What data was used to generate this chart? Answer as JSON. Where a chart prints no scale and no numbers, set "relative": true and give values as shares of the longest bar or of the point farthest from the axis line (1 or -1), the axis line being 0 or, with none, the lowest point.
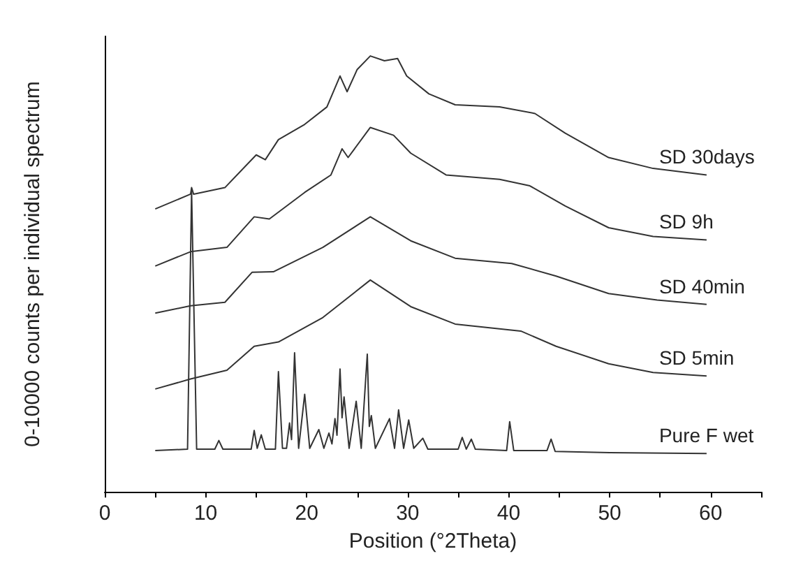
{
  "chart_data": {
    "type": "line",
    "relative": true,
    "xlabel": "Position (°2Theta)",
    "ylabel": "0-10000 counts per individual spectrum",
    "xlim": [
      0,
      65
    ],
    "xticks": [
      0,
      {
        "value": 5,
        "label": null
      },
      10,
      {
        "value": 15,
        "label": null
      },
      20,
      {
        "value": 25,
        "label": null
      },
      30,
      {
        "value": 35,
        "label": null
      },
      40,
      {
        "value": 45,
        "label": null
      },
      50,
      {
        "value": 55,
        "label": null
      },
      60,
      {
        "value": 65,
        "label": null
      }
    ],
    "legend": false,
    "grid": false,
    "marker": "none",
    "line_style": "solid",
    "series": [
      {
        "name": "SD 30days",
        "color": "#333333",
        "x": [
          5.0,
          8.5,
          8.6,
          8.8,
          11.9,
          15.0,
          15.9,
          17.2,
          19.8,
          22.0,
          23.3,
          24.0,
          25.0,
          26.3,
          27.7,
          29.0,
          29.9,
          32.1,
          34.7,
          39.1,
          42.6,
          45.6,
          49.9,
          54.3,
          59.6
        ],
        "values": [
          0.649,
          0.683,
          0.698,
          0.683,
          0.698,
          0.773,
          0.762,
          0.808,
          0.843,
          0.883,
          0.954,
          0.918,
          0.969,
          1.0,
          0.989,
          0.994,
          0.954,
          0.913,
          0.888,
          0.883,
          0.868,
          0.823,
          0.767,
          0.742,
          0.727
        ]
      },
      {
        "name": "SD 9h",
        "color": "#333333",
        "x": [
          5.0,
          8.5,
          12.1,
          14.8,
          16.3,
          19.8,
          22.4,
          23.5,
          24.1,
          26.3,
          28.6,
          30.3,
          33.8,
          39.1,
          42.1,
          45.6,
          49.9,
          54.3,
          59.6
        ],
        "values": [
          0.518,
          0.551,
          0.561,
          0.631,
          0.626,
          0.687,
          0.727,
          0.787,
          0.767,
          0.836,
          0.818,
          0.777,
          0.727,
          0.717,
          0.702,
          0.656,
          0.606,
          0.586,
          0.578
        ]
      },
      {
        "name": "SD 40min",
        "color": "#333333",
        "x": [
          5.0,
          8.5,
          11.9,
          14.6,
          16.7,
          21.6,
          26.3,
          30.3,
          34.7,
          40.3,
          44.7,
          49.9,
          54.7,
          59.6
        ],
        "values": [
          0.41,
          0.427,
          0.435,
          0.504,
          0.505,
          0.561,
          0.631,
          0.576,
          0.536,
          0.524,
          0.495,
          0.455,
          0.44,
          0.43
        ]
      },
      {
        "name": "SD 5min",
        "color": "#333333",
        "x": [
          5.0,
          8.5,
          12.1,
          14.8,
          17.2,
          21.6,
          26.3,
          30.3,
          34.7,
          41.2,
          44.7,
          49.9,
          54.3,
          59.6
        ],
        "values": [
          0.236,
          0.259,
          0.279,
          0.334,
          0.344,
          0.4,
          0.486,
          0.425,
          0.385,
          0.369,
          0.334,
          0.294,
          0.274,
          0.266
        ]
      },
      {
        "name": "Pure F wet",
        "color": "#333333",
        "x": [
          5.0,
          8.2,
          8.6,
          9.1,
          10.9,
          11.3,
          11.7,
          14.5,
          14.8,
          15.1,
          15.5,
          15.9,
          16.9,
          17.2,
          17.6,
          18.0,
          18.3,
          18.5,
          18.8,
          19.2,
          19.8,
          20.3,
          21.2,
          21.7,
          22.2,
          22.5,
          22.8,
          23.0,
          23.3,
          23.5,
          23.7,
          24.2,
          24.9,
          25.4,
          26.0,
          26.2,
          26.4,
          26.8,
          28.2,
          28.7,
          29.1,
          29.6,
          30.1,
          30.6,
          31.5,
          32.0,
          35.0,
          35.4,
          35.8,
          36.3,
          36.7,
          39.8,
          40.1,
          40.5,
          43.8,
          44.2,
          44.6,
          50.0,
          59.6
        ],
        "values": [
          0.095,
          0.098,
          0.69,
          0.098,
          0.098,
          0.118,
          0.098,
          0.098,
          0.141,
          0.1,
          0.131,
          0.098,
          0.098,
          0.276,
          0.1,
          0.1,
          0.158,
          0.12,
          0.319,
          0.1,
          0.224,
          0.1,
          0.143,
          0.1,
          0.135,
          0.11,
          0.168,
          0.13,
          0.282,
          0.17,
          0.218,
          0.1,
          0.208,
          0.1,
          0.316,
          0.15,
          0.175,
          0.1,
          0.168,
          0.1,
          0.188,
          0.1,
          0.165,
          0.1,
          0.123,
          0.098,
          0.098,
          0.125,
          0.098,
          0.121,
          0.098,
          0.095,
          0.161,
          0.095,
          0.095,
          0.121,
          0.093,
          0.09,
          0.088
        ]
      }
    ]
  }
}
